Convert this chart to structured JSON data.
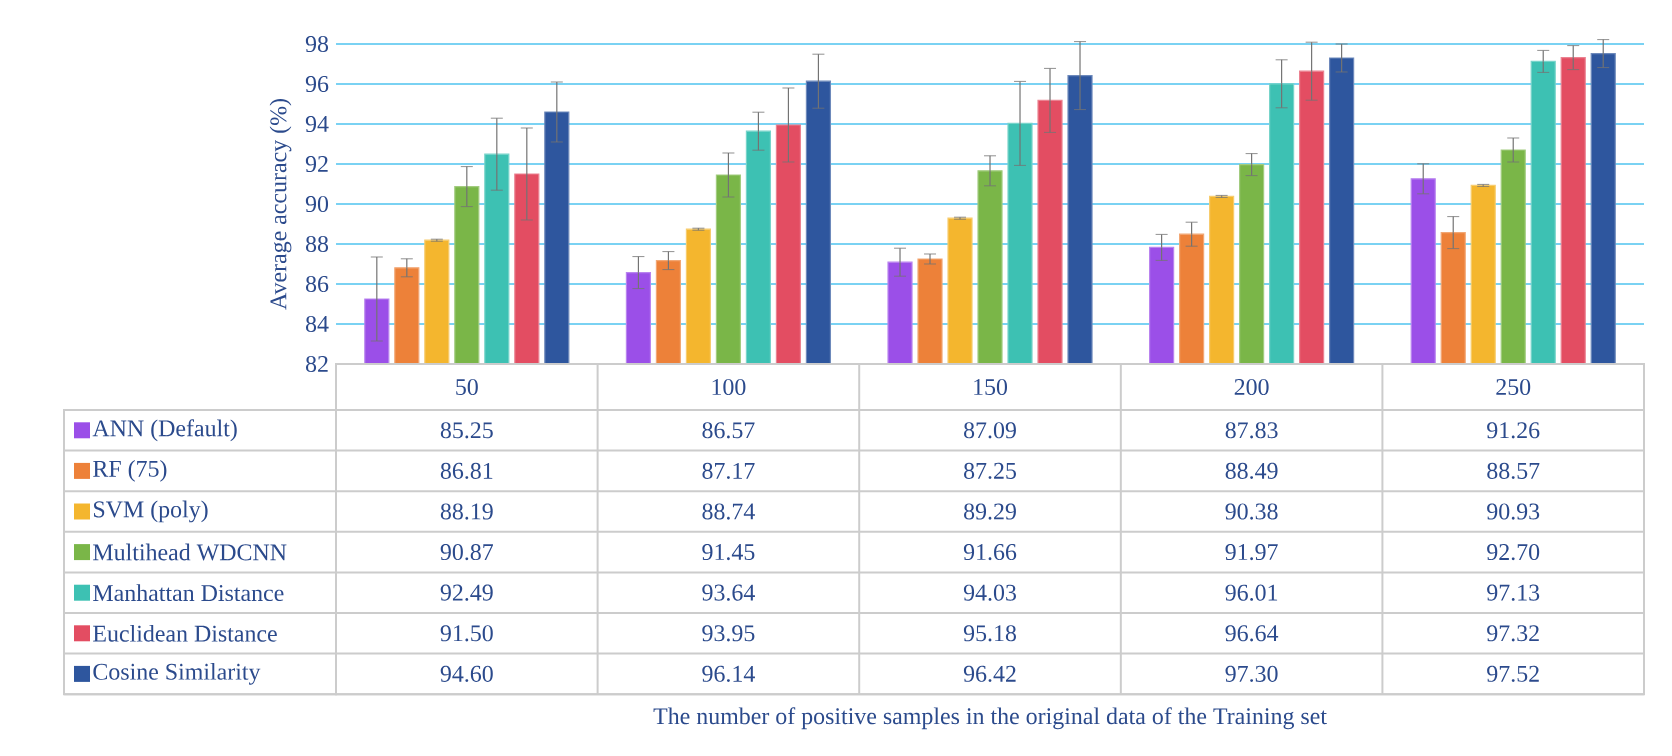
{
  "chart_data": {
    "type": "bar",
    "annotations": [
      "The number of positive samples in the original data of the Training set"
    ],
    "ylabel": "Average accuracy (%)",
    "categories": [
      "50",
      "100",
      "150",
      "200",
      "250"
    ],
    "ylim": [
      82,
      98
    ],
    "yticks": [
      82,
      84,
      86,
      88,
      90,
      92,
      94,
      96,
      98
    ],
    "grid": "y",
    "legend": "bottom",
    "series": [
      {
        "name": "ANN (Default)",
        "color": "#9b4fe8",
        "values": [
          85.25,
          86.57,
          87.09,
          87.83,
          91.26
        ],
        "value_labels": [
          "85.25",
          "86.57",
          "87.09",
          "87.83",
          "91.26"
        ],
        "errors": [
          2.1,
          0.8,
          0.7,
          0.65,
          0.75
        ]
      },
      {
        "name": "RF (75)",
        "color": "#ed8139",
        "values": [
          86.81,
          87.17,
          87.25,
          88.49,
          88.57
        ],
        "value_labels": [
          "86.81",
          "87.17",
          "87.25",
          "88.49",
          "88.57"
        ],
        "errors": [
          0.45,
          0.45,
          0.25,
          0.6,
          0.8
        ]
      },
      {
        "name": "SVM (poly)",
        "color": "#f4b62e",
        "values": [
          88.19,
          88.74,
          89.29,
          90.38,
          90.93
        ],
        "value_labels": [
          "88.19",
          "88.74",
          "89.29",
          "90.38",
          "90.93"
        ],
        "errors": [
          0.05,
          0.05,
          0.05,
          0.05,
          0.05
        ]
      },
      {
        "name": "Multihead WDCNN",
        "color": "#7ab648",
        "values": [
          90.87,
          91.45,
          91.66,
          91.97,
          92.7
        ],
        "value_labels": [
          "90.87",
          "91.45",
          "91.66",
          "91.97",
          "92.70"
        ],
        "errors": [
          1.0,
          1.1,
          0.75,
          0.55,
          0.6
        ]
      },
      {
        "name": "Manhattan Distance",
        "color": "#3dc1b3",
        "values": [
          92.49,
          93.64,
          94.03,
          96.01,
          97.13
        ],
        "value_labels": [
          "92.49",
          "93.64",
          "94.03",
          "96.01",
          "97.13"
        ],
        "errors": [
          1.8,
          0.95,
          2.1,
          1.2,
          0.55
        ]
      },
      {
        "name": "Euclidean Distance",
        "color": "#e34d62",
        "values": [
          91.5,
          93.95,
          95.18,
          96.64,
          97.32
        ],
        "value_labels": [
          "91.50",
          "93.95",
          "95.18",
          "96.64",
          "97.32"
        ],
        "errors": [
          2.3,
          1.85,
          1.6,
          1.45,
          0.6
        ]
      },
      {
        "name": "Cosine Similarity",
        "color": "#2e569e",
        "values": [
          94.6,
          96.14,
          96.42,
          97.3,
          97.52
        ],
        "value_labels": [
          "94.60",
          "96.14",
          "96.42",
          "97.30",
          "97.52"
        ],
        "errors": [
          1.5,
          1.35,
          1.7,
          0.7,
          0.7
        ]
      }
    ]
  }
}
